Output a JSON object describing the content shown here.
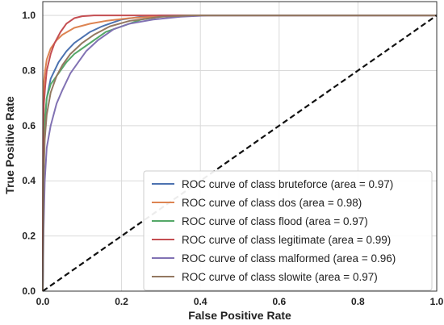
{
  "chart_data": {
    "type": "line",
    "title": "",
    "xlabel": "False Positive Rate",
    "ylabel": "True Positive Rate",
    "xlim": [
      0.0,
      1.0
    ],
    "ylim": [
      0.0,
      1.05
    ],
    "xticks": [
      "0.0",
      "0.2",
      "0.4",
      "0.6",
      "0.8",
      "1.0"
    ],
    "yticks": [
      "0.0",
      "0.2",
      "0.4",
      "0.6",
      "0.8",
      "1.0"
    ],
    "grid": true,
    "legend_position": "lower-right",
    "diagonal": {
      "points": [
        [
          0,
          0
        ],
        [
          1,
          1
        ]
      ],
      "color": "#111111",
      "style": "dashed"
    },
    "series": [
      {
        "name": "ROC curve of class bruteforce (area = 0.97)",
        "color": "#4c72b0",
        "points": [
          [
            0,
            0
          ],
          [
            0.002,
            0.45
          ],
          [
            0.005,
            0.6
          ],
          [
            0.01,
            0.7
          ],
          [
            0.02,
            0.77
          ],
          [
            0.04,
            0.83
          ],
          [
            0.06,
            0.87
          ],
          [
            0.08,
            0.9
          ],
          [
            0.1,
            0.92
          ],
          [
            0.12,
            0.94
          ],
          [
            0.15,
            0.96
          ],
          [
            0.2,
            0.985
          ],
          [
            0.25,
            0.995
          ],
          [
            0.3,
            1.0
          ],
          [
            1.0,
            1.0
          ]
        ]
      },
      {
        "name": "ROC curve of class dos (area = 0.98)",
        "color": "#dd8452",
        "points": [
          [
            0,
            0
          ],
          [
            0.001,
            0.7
          ],
          [
            0.003,
            0.76
          ],
          [
            0.006,
            0.8
          ],
          [
            0.01,
            0.84
          ],
          [
            0.02,
            0.88
          ],
          [
            0.035,
            0.91
          ],
          [
            0.05,
            0.93
          ],
          [
            0.08,
            0.955
          ],
          [
            0.12,
            0.97
          ],
          [
            0.16,
            0.98
          ],
          [
            0.22,
            0.99
          ],
          [
            0.3,
            0.997
          ],
          [
            0.4,
            1.0
          ],
          [
            1.0,
            1.0
          ]
        ]
      },
      {
        "name": "ROC curve of class flood (area = 0.97)",
        "color": "#55a868",
        "points": [
          [
            0,
            0
          ],
          [
            0.002,
            0.5
          ],
          [
            0.005,
            0.62
          ],
          [
            0.01,
            0.7
          ],
          [
            0.02,
            0.75
          ],
          [
            0.04,
            0.79
          ],
          [
            0.06,
            0.83
          ],
          [
            0.08,
            0.86
          ],
          [
            0.1,
            0.88
          ],
          [
            0.13,
            0.91
          ],
          [
            0.16,
            0.94
          ],
          [
            0.2,
            0.96
          ],
          [
            0.25,
            0.985
          ],
          [
            0.3,
            0.995
          ],
          [
            0.35,
            1.0
          ],
          [
            1.0,
            1.0
          ]
        ]
      },
      {
        "name": "ROC curve of class legitimate (area = 0.99)",
        "color": "#c44e52",
        "points": [
          [
            0,
            0
          ],
          [
            0.001,
            0.6
          ],
          [
            0.003,
            0.68
          ],
          [
            0.006,
            0.74
          ],
          [
            0.01,
            0.8
          ],
          [
            0.02,
            0.86
          ],
          [
            0.03,
            0.9
          ],
          [
            0.045,
            0.94
          ],
          [
            0.06,
            0.97
          ],
          [
            0.08,
            0.99
          ],
          [
            0.1,
            0.997
          ],
          [
            0.13,
            1.0
          ],
          [
            1.0,
            1.0
          ]
        ]
      },
      {
        "name": "ROC curve of class malformed (area = 0.96)",
        "color": "#8172b3",
        "points": [
          [
            0,
            0
          ],
          [
            0.002,
            0.22
          ],
          [
            0.005,
            0.4
          ],
          [
            0.01,
            0.52
          ],
          [
            0.02,
            0.6
          ],
          [
            0.035,
            0.68
          ],
          [
            0.05,
            0.73
          ],
          [
            0.07,
            0.79
          ],
          [
            0.09,
            0.83
          ],
          [
            0.11,
            0.87
          ],
          [
            0.14,
            0.91
          ],
          [
            0.18,
            0.95
          ],
          [
            0.22,
            0.97
          ],
          [
            0.28,
            0.985
          ],
          [
            0.35,
            0.995
          ],
          [
            0.42,
            1.0
          ],
          [
            1.0,
            1.0
          ]
        ]
      },
      {
        "name": "ROC curve of class slowite (area = 0.97)",
        "color": "#937860",
        "points": [
          [
            0,
            0
          ],
          [
            0.002,
            0.4
          ],
          [
            0.005,
            0.55
          ],
          [
            0.01,
            0.64
          ],
          [
            0.02,
            0.72
          ],
          [
            0.035,
            0.78
          ],
          [
            0.05,
            0.82
          ],
          [
            0.07,
            0.86
          ],
          [
            0.1,
            0.9
          ],
          [
            0.13,
            0.93
          ],
          [
            0.17,
            0.96
          ],
          [
            0.22,
            0.98
          ],
          [
            0.3,
            0.995
          ],
          [
            0.38,
            1.0
          ],
          [
            1.0,
            1.0
          ]
        ]
      }
    ]
  }
}
